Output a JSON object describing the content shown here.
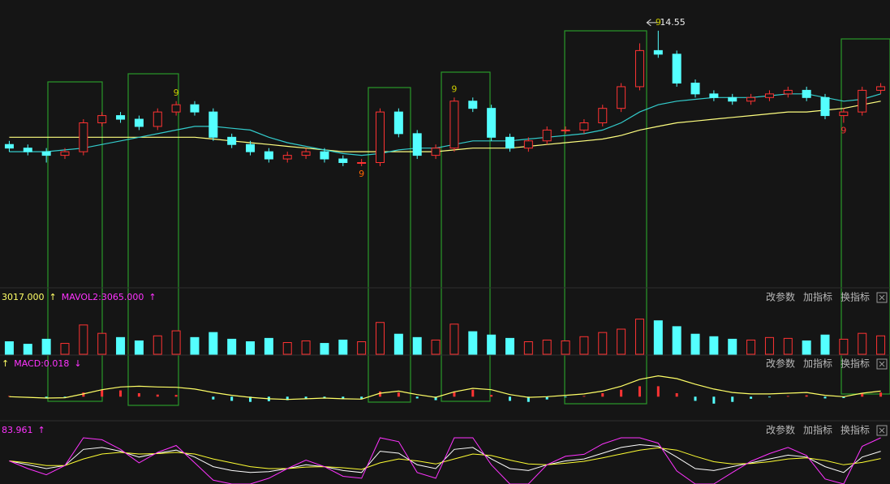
{
  "chart_data": {
    "type": "candlestick",
    "open": [
      11.4,
      11.3,
      11.2,
      11.1,
      11.2,
      12.0,
      12.2,
      12.1,
      11.9,
      12.3,
      12.5,
      12.3,
      11.6,
      11.4,
      11.2,
      11.0,
      11.1,
      11.2,
      11.0,
      10.9,
      10.9,
      12.3,
      11.7,
      11.1,
      11.3,
      12.6,
      12.4,
      11.6,
      11.3,
      11.5,
      11.8,
      11.8,
      12.0,
      12.4,
      13.0,
      14.0,
      13.9,
      13.1,
      12.8,
      12.7,
      12.6,
      12.7,
      12.8,
      12.9,
      12.7,
      12.2,
      12.3,
      12.9
    ],
    "close": [
      11.3,
      11.2,
      11.1,
      11.2,
      12.0,
      12.2,
      12.1,
      11.9,
      12.3,
      12.5,
      12.3,
      11.6,
      11.4,
      11.2,
      11.0,
      11.1,
      11.2,
      11.0,
      10.9,
      10.9,
      12.3,
      11.7,
      11.1,
      11.3,
      12.6,
      12.4,
      11.6,
      11.3,
      11.5,
      11.8,
      11.8,
      12.0,
      12.4,
      13.0,
      14.0,
      13.9,
      13.1,
      12.8,
      12.7,
      12.6,
      12.7,
      12.8,
      12.9,
      12.7,
      12.2,
      12.3,
      12.9,
      13.0
    ],
    "high": [
      11.5,
      11.4,
      11.3,
      11.3,
      12.1,
      12.3,
      12.3,
      12.2,
      12.4,
      12.6,
      12.6,
      12.4,
      11.7,
      11.5,
      11.3,
      11.2,
      11.3,
      11.3,
      11.1,
      11.0,
      12.4,
      12.4,
      11.8,
      11.4,
      12.7,
      12.7,
      12.5,
      11.7,
      11.6,
      11.9,
      11.9,
      12.1,
      12.5,
      13.1,
      14.2,
      14.55,
      14.0,
      13.2,
      12.9,
      12.8,
      12.8,
      12.9,
      13.0,
      13.0,
      12.8,
      12.4,
      13.0,
      13.1
    ],
    "low": [
      11.2,
      11.1,
      10.9,
      11.0,
      11.1,
      11.9,
      12.0,
      11.8,
      11.8,
      12.2,
      12.2,
      11.5,
      11.3,
      11.1,
      10.9,
      10.9,
      11.0,
      10.9,
      10.8,
      10.8,
      10.8,
      11.6,
      11.0,
      11.0,
      11.2,
      12.3,
      11.5,
      11.2,
      11.2,
      11.4,
      11.7,
      11.7,
      11.9,
      12.3,
      12.9,
      13.8,
      13.0,
      12.7,
      12.6,
      12.5,
      12.5,
      12.6,
      12.7,
      12.6,
      12.1,
      12.0,
      12.2,
      12.8
    ],
    "up_color": "#ff3333",
    "down_color": "#54ffff",
    "ylim": [
      7.5,
      15.4
    ],
    "ma_lines": [
      {
        "color": "#ffff80",
        "values": [
          11.6,
          11.6,
          11.6,
          11.6,
          11.6,
          11.6,
          11.6,
          11.6,
          11.6,
          11.6,
          11.6,
          11.55,
          11.5,
          11.45,
          11.4,
          11.35,
          11.3,
          11.25,
          11.2,
          11.2,
          11.2,
          11.2,
          11.2,
          11.2,
          11.25,
          11.3,
          11.3,
          11.3,
          11.35,
          11.4,
          11.45,
          11.5,
          11.55,
          11.65,
          11.8,
          11.9,
          12.0,
          12.05,
          12.1,
          12.15,
          12.2,
          12.25,
          12.3,
          12.3,
          12.35,
          12.4,
          12.5,
          12.6
        ]
      },
      {
        "color": "#33cccc",
        "values": [
          11.2,
          11.2,
          11.2,
          11.25,
          11.3,
          11.4,
          11.5,
          11.6,
          11.7,
          11.8,
          11.9,
          11.9,
          11.85,
          11.8,
          11.6,
          11.45,
          11.35,
          11.25,
          11.15,
          11.1,
          11.15,
          11.25,
          11.3,
          11.3,
          11.4,
          11.5,
          11.5,
          11.5,
          11.55,
          11.6,
          11.65,
          11.7,
          11.8,
          12.0,
          12.3,
          12.5,
          12.6,
          12.65,
          12.7,
          12.7,
          12.7,
          12.75,
          12.8,
          12.8,
          12.7,
          12.6,
          12.65,
          12.8
        ]
      }
    ],
    "peak_index": 35,
    "td_labels": [
      {
        "index": 9,
        "text": "9",
        "color": "#c8c800",
        "pos": "top"
      },
      {
        "index": 19,
        "text": "9",
        "color": "#ff6600",
        "pos": "bottom"
      },
      {
        "index": 24,
        "text": "9",
        "color": "#c8c800",
        "pos": "top"
      },
      {
        "index": 35,
        "text": "9",
        "color": "#c8c800",
        "pos": "top"
      },
      {
        "index": 45,
        "text": "9",
        "color": "#ff3333",
        "pos": "bottom"
      }
    ],
    "volume": {
      "values": [
        1500,
        1200,
        1800,
        1300,
        3500,
        2500,
        2000,
        1600,
        2200,
        2800,
        2000,
        2600,
        1800,
        1500,
        1900,
        1400,
        1600,
        1300,
        1700,
        1500,
        3800,
        2400,
        2000,
        1700,
        3600,
        2700,
        2300,
        1900,
        1500,
        1700,
        1600,
        2100,
        2600,
        3000,
        4200,
        4000,
        3300,
        2400,
        2100,
        1800,
        1700,
        2000,
        1900,
        1600,
        2300,
        1800,
        2500,
        2200
      ],
      "ylim": [
        0,
        6000
      ],
      "header": [
        {
          "text": "3017.000",
          "color": "#ffff66"
        },
        {
          "text": "↑",
          "color": "#ffff66"
        },
        {
          "text": "MAVOL2:3065.000",
          "color": "#ff33ff"
        },
        {
          "text": "↑",
          "color": "#ff33ff"
        }
      ]
    },
    "macd": {
      "hist": [
        0.02,
        0.0,
        -0.03,
        -0.02,
        0.12,
        0.2,
        0.18,
        0.1,
        0.06,
        0.05,
        0.0,
        -0.08,
        -0.12,
        -0.15,
        -0.13,
        -0.1,
        -0.06,
        -0.05,
        -0.07,
        -0.06,
        0.15,
        0.12,
        -0.05,
        -0.1,
        0.15,
        0.2,
        0.05,
        -0.12,
        -0.15,
        -0.08,
        -0.02,
        0.02,
        0.1,
        0.2,
        0.3,
        0.3,
        0.1,
        -0.12,
        -0.2,
        -0.15,
        -0.06,
        -0.02,
        0.02,
        0.04,
        -0.05,
        -0.04,
        0.1,
        0.12
      ],
      "dif": [
        0.0,
        -0.02,
        -0.04,
        -0.03,
        0.08,
        0.2,
        0.28,
        0.3,
        0.28,
        0.27,
        0.22,
        0.12,
        0.04,
        -0.02,
        -0.06,
        -0.08,
        -0.06,
        -0.04,
        -0.06,
        -0.07,
        0.1,
        0.16,
        0.06,
        -0.02,
        0.14,
        0.24,
        0.2,
        0.06,
        -0.02,
        0.0,
        0.04,
        0.08,
        0.16,
        0.3,
        0.5,
        0.6,
        0.52,
        0.36,
        0.22,
        0.12,
        0.08,
        0.08,
        0.1,
        0.12,
        0.04,
        0.0,
        0.1,
        0.16
      ],
      "ylim": [
        -0.6,
        0.8
      ],
      "header": [
        {
          "text": "↑",
          "color": "#ffff66"
        },
        {
          "text": "MACD:0.018",
          "color": "#ff33ff"
        },
        {
          "text": "↓",
          "color": "#ff33ff"
        }
      ]
    },
    "kdj": {
      "lines": [
        {
          "color": "#ffffff",
          "values": [
            50,
            40,
            30,
            38,
            80,
            85,
            75,
            60,
            70,
            78,
            60,
            35,
            25,
            20,
            22,
            30,
            40,
            35,
            25,
            20,
            75,
            70,
            40,
            30,
            80,
            85,
            55,
            30,
            25,
            40,
            50,
            55,
            70,
            85,
            92,
            88,
            60,
            30,
            25,
            35,
            45,
            55,
            65,
            60,
            35,
            20,
            60,
            75
          ]
        },
        {
          "color": "#ffff33",
          "values": [
            50,
            45,
            38,
            38,
            55,
            68,
            72,
            68,
            69,
            72,
            68,
            55,
            45,
            35,
            30,
            30,
            34,
            35,
            32,
            28,
            45,
            55,
            50,
            42,
            55,
            68,
            64,
            52,
            42,
            40,
            44,
            49,
            58,
            68,
            78,
            84,
            78,
            62,
            48,
            42,
            43,
            48,
            55,
            58,
            51,
            40,
            46,
            56
          ]
        },
        {
          "color": "#ff33ff",
          "values": [
            50,
            30,
            14,
            38,
            110,
            105,
            80,
            45,
            72,
            90,
            45,
            0,
            -10,
            -10,
            5,
            30,
            52,
            35,
            10,
            5,
            110,
            100,
            20,
            5,
            110,
            110,
            40,
            -10,
            -10,
            40,
            62,
            67,
            94,
            110,
            110,
            96,
            24,
            -10,
            -10,
            20,
            49,
            69,
            85,
            64,
            3,
            -10,
            88,
            110
          ]
        }
      ],
      "ylim": [
        -10,
        110
      ],
      "header": [
        {
          "text": "83.961",
          "color": "#ff33ff"
        },
        {
          "text": "↑",
          "color": "#ff33ff"
        }
      ]
    },
    "buttons": [
      "改参数",
      "加指标",
      "换指标"
    ]
  }
}
